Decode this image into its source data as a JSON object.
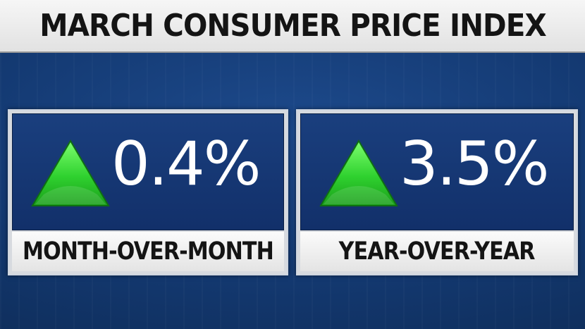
{
  "header": {
    "title": "MARCH CONSUMER PRICE INDEX"
  },
  "panels": [
    {
      "direction": "up",
      "arrow_icon": "triangle-up-icon",
      "arrow_color": "#2fd12f",
      "value": "0.4%",
      "label": "MONTH-OVER-MONTH"
    },
    {
      "direction": "up",
      "arrow_icon": "triangle-up-icon",
      "arrow_color": "#2fd12f",
      "value": "3.5%",
      "label": "YEAR-OVER-YEAR"
    }
  ],
  "colors": {
    "background": "#143a73",
    "value_box": "#1a3f7e",
    "label_box": "#f2f2f2",
    "text_dark": "#141414",
    "text_light": "#ffffff",
    "arrow_up": "#2fd12f"
  }
}
